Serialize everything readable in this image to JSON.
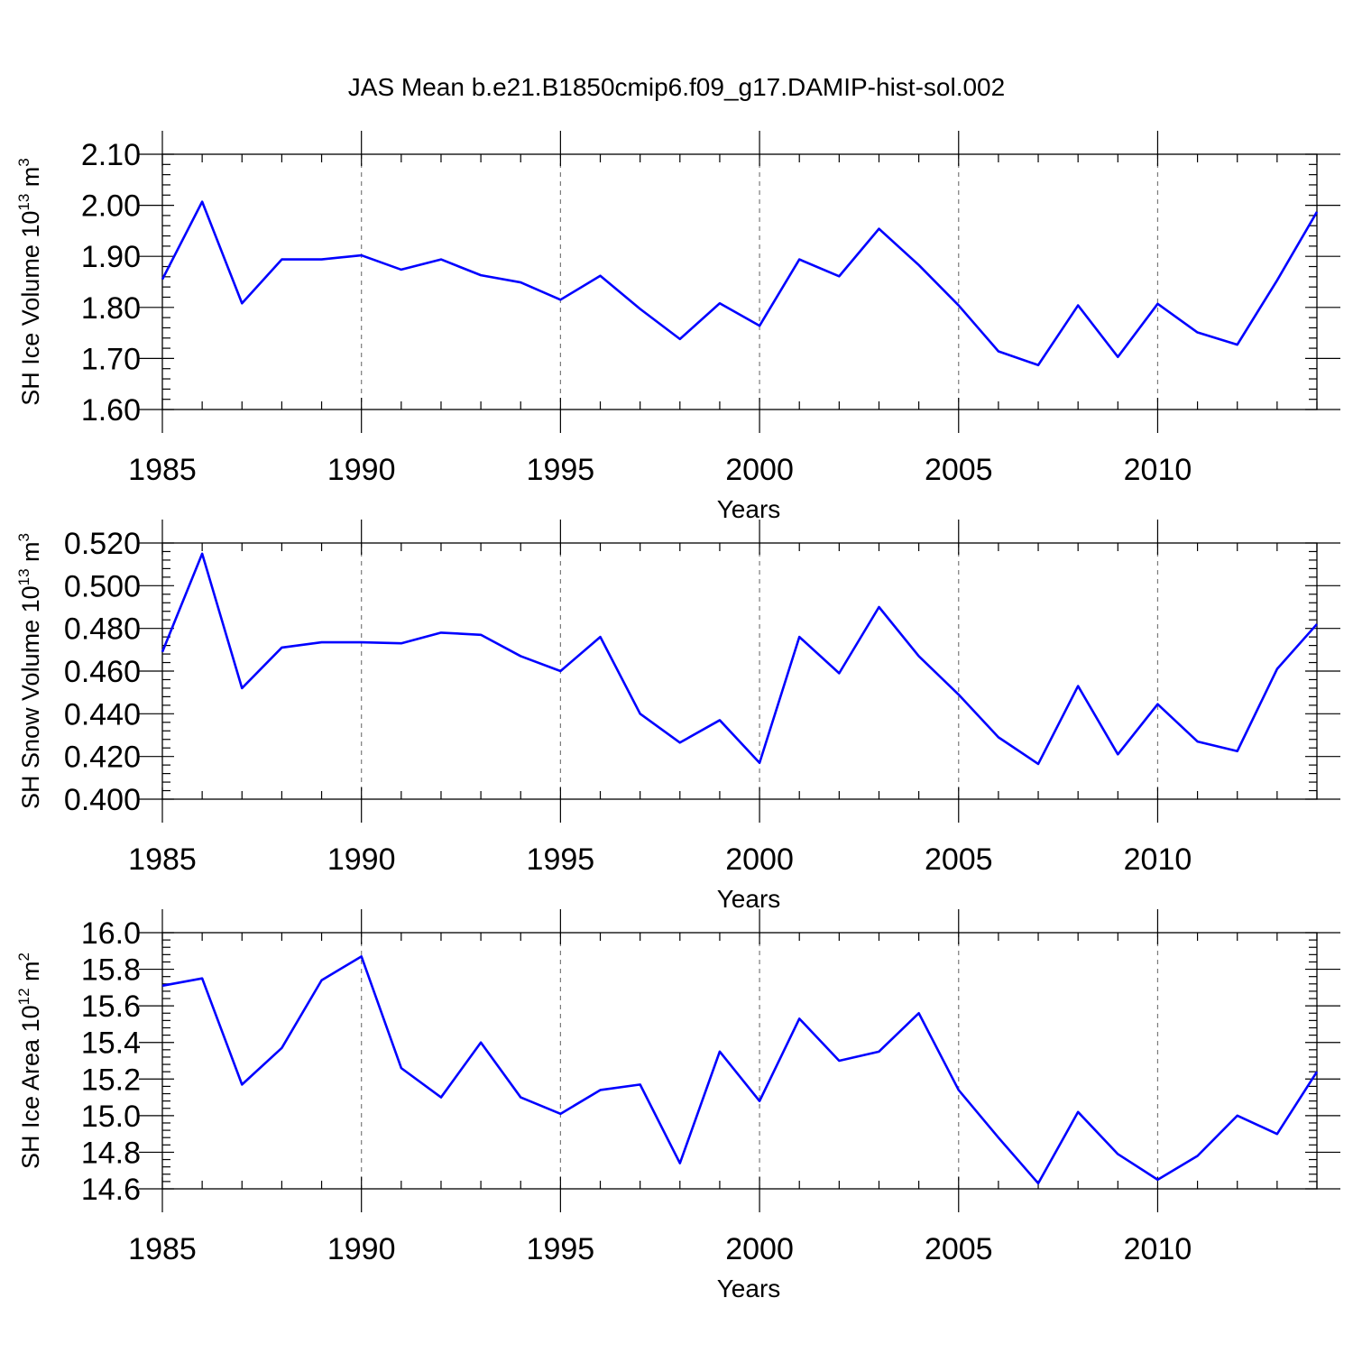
{
  "title": "JAS Mean b.e21.B1850cmip6.f09_g17.DAMIP-hist-sol.002",
  "chart_data": [
    {
      "type": "line",
      "xlabel": "Years",
      "ylabel": {
        "base": "SH Ice Volume 10",
        "exp": "13",
        "unit": " m",
        "unit_exp": "3"
      },
      "xlim": [
        1985,
        2014
      ],
      "ylim": [
        1.6,
        2.1
      ],
      "xticks": [
        1985,
        1990,
        1995,
        2000,
        2005,
        2010
      ],
      "xtick_labels": [
        "1985",
        "1990",
        "1995",
        "2000",
        "2005",
        "2010"
      ],
      "yticks": [
        1.6,
        1.7,
        1.8,
        1.9,
        2.0,
        2.1
      ],
      "ytick_labels": [
        "1.60",
        "1.70",
        "1.80",
        "1.90",
        "2.00",
        "2.10"
      ],
      "grid": "vertical dashed at major x ticks",
      "series": [
        {
          "name": "SH Ice Volume",
          "color": "#0000ff",
          "x": [
            1985,
            1986,
            1987,
            1988,
            1989,
            1990,
            1991,
            1992,
            1993,
            1994,
            1995,
            1996,
            1997,
            1998,
            1999,
            2000,
            2001,
            2002,
            2003,
            2004,
            2005,
            2006,
            2007,
            2008,
            2009,
            2010,
            2011,
            2012,
            2013,
            2014
          ],
          "values": [
            1.855,
            2.007,
            1.808,
            1.894,
            1.894,
            1.902,
            1.874,
            1.894,
            1.863,
            1.849,
            1.815,
            1.862,
            1.797,
            1.738,
            1.808,
            1.764,
            1.894,
            1.861,
            1.954,
            1.883,
            1.804,
            1.714,
            1.687,
            1.804,
            1.703,
            1.807,
            1.751,
            1.727,
            1.853,
            1.987
          ]
        }
      ]
    },
    {
      "type": "line",
      "xlabel": "Years",
      "ylabel": {
        "base": "SH Snow Volume 10",
        "exp": "13",
        "unit": " m",
        "unit_exp": "3"
      },
      "xlim": [
        1985,
        2014
      ],
      "ylim": [
        0.4,
        0.52
      ],
      "xticks": [
        1985,
        1990,
        1995,
        2000,
        2005,
        2010
      ],
      "xtick_labels": [
        "1985",
        "1990",
        "1995",
        "2000",
        "2005",
        "2010"
      ],
      "yticks": [
        0.4,
        0.42,
        0.44,
        0.46,
        0.48,
        0.5,
        0.52
      ],
      "ytick_labels": [
        "0.400",
        "0.420",
        "0.440",
        "0.460",
        "0.480",
        "0.500",
        "0.520"
      ],
      "grid": "vertical dashed at major x ticks",
      "series": [
        {
          "name": "SH Snow Volume",
          "color": "#0000ff",
          "x": [
            1985,
            1986,
            1987,
            1988,
            1989,
            1990,
            1991,
            1992,
            1993,
            1994,
            1995,
            1996,
            1997,
            1998,
            1999,
            2000,
            2001,
            2002,
            2003,
            2004,
            2005,
            2006,
            2007,
            2008,
            2009,
            2010,
            2011,
            2012,
            2013,
            2014
          ],
          "values": [
            0.469,
            0.515,
            0.452,
            0.471,
            0.4735,
            0.4735,
            0.473,
            0.478,
            0.477,
            0.467,
            0.46,
            0.476,
            0.44,
            0.4265,
            0.437,
            0.417,
            0.476,
            0.459,
            0.49,
            0.467,
            0.449,
            0.429,
            0.4165,
            0.453,
            0.421,
            0.4445,
            0.427,
            0.4225,
            0.461,
            0.482
          ]
        }
      ]
    },
    {
      "type": "line",
      "xlabel": "Years",
      "ylabel": {
        "base": "SH Ice Area 10",
        "exp": "12",
        "unit": " m",
        "unit_exp": "2"
      },
      "xlim": [
        1985,
        2014
      ],
      "ylim": [
        14.6,
        16.0
      ],
      "xticks": [
        1985,
        1990,
        1995,
        2000,
        2005,
        2010
      ],
      "xtick_labels": [
        "1985",
        "1990",
        "1995",
        "2000",
        "2005",
        "2010"
      ],
      "yticks": [
        14.6,
        14.8,
        15.0,
        15.2,
        15.4,
        15.6,
        15.8,
        16.0
      ],
      "ytick_labels": [
        "14.6",
        "14.8",
        "15.0",
        "15.2",
        "15.4",
        "15.6",
        "15.8",
        "16.0"
      ],
      "grid": "vertical dashed at major x ticks",
      "series": [
        {
          "name": "SH Ice Area",
          "color": "#0000ff",
          "x": [
            1985,
            1986,
            1987,
            1988,
            1989,
            1990,
            1991,
            1992,
            1993,
            1994,
            1995,
            1996,
            1997,
            1998,
            1999,
            2000,
            2001,
            2002,
            2003,
            2004,
            2005,
            2006,
            2007,
            2008,
            2009,
            2010,
            2011,
            2012,
            2013,
            2014
          ],
          "values": [
            15.71,
            15.75,
            15.17,
            15.37,
            15.74,
            15.87,
            15.26,
            15.1,
            15.4,
            15.1,
            15.01,
            15.14,
            15.17,
            14.74,
            15.35,
            15.08,
            15.53,
            15.3,
            15.35,
            15.56,
            15.14,
            14.88,
            14.63,
            15.02,
            14.79,
            14.65,
            14.78,
            15.0,
            14.9,
            15.24
          ]
        }
      ]
    }
  ]
}
